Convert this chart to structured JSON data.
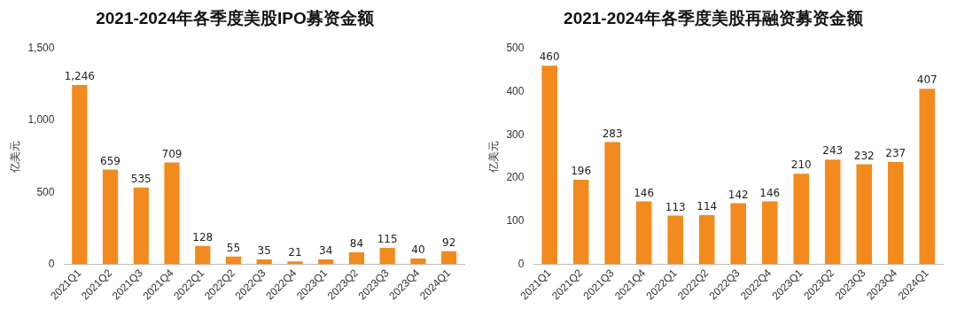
{
  "chart_data": [
    {
      "type": "bar",
      "title": "2021-2024年各季度美股IPO募资金额",
      "ylabel": "亿美元",
      "categories": [
        "2021Q1",
        "2021Q2",
        "2021Q3",
        "2021Q4",
        "2022Q1",
        "2022Q2",
        "2022Q3",
        "2022Q4",
        "2023Q1",
        "2023Q2",
        "2023Q3",
        "2023Q4",
        "2024Q1"
      ],
      "values": [
        1246,
        659,
        535,
        709,
        128,
        55,
        35,
        21,
        34,
        84,
        115,
        40,
        92
      ],
      "color": "#f28a1d",
      "ylim": [
        0,
        1500
      ],
      "yticks": [
        0,
        500,
        {
          "value": 1000,
          "label": "1,000"
        },
        {
          "value": 1500,
          "label": "1,500"
        }
      ],
      "value_labels": [
        "1,246",
        "659",
        "535",
        "709",
        "128",
        "55",
        "35",
        "21",
        "34",
        "84",
        "115",
        "40",
        "92"
      ]
    },
    {
      "type": "bar",
      "title": "2021-2024年各季度美股再融资募资金额",
      "ylabel": "亿美元",
      "categories": [
        "2021Q1",
        "2021Q2",
        "2021Q3",
        "2021Q4",
        "2022Q1",
        "2022Q2",
        "2022Q3",
        "2022Q4",
        "2023Q1",
        "2023Q2",
        "2023Q3",
        "2023Q4",
        "2024Q1"
      ],
      "values": [
        460,
        196,
        283,
        146,
        113,
        114,
        142,
        146,
        210,
        243,
        232,
        237,
        407
      ],
      "color": "#f28a1d",
      "ylim": [
        0,
        500
      ],
      "yticks": [
        0,
        100,
        200,
        300,
        400,
        500
      ],
      "data_labels": true
    }
  ]
}
